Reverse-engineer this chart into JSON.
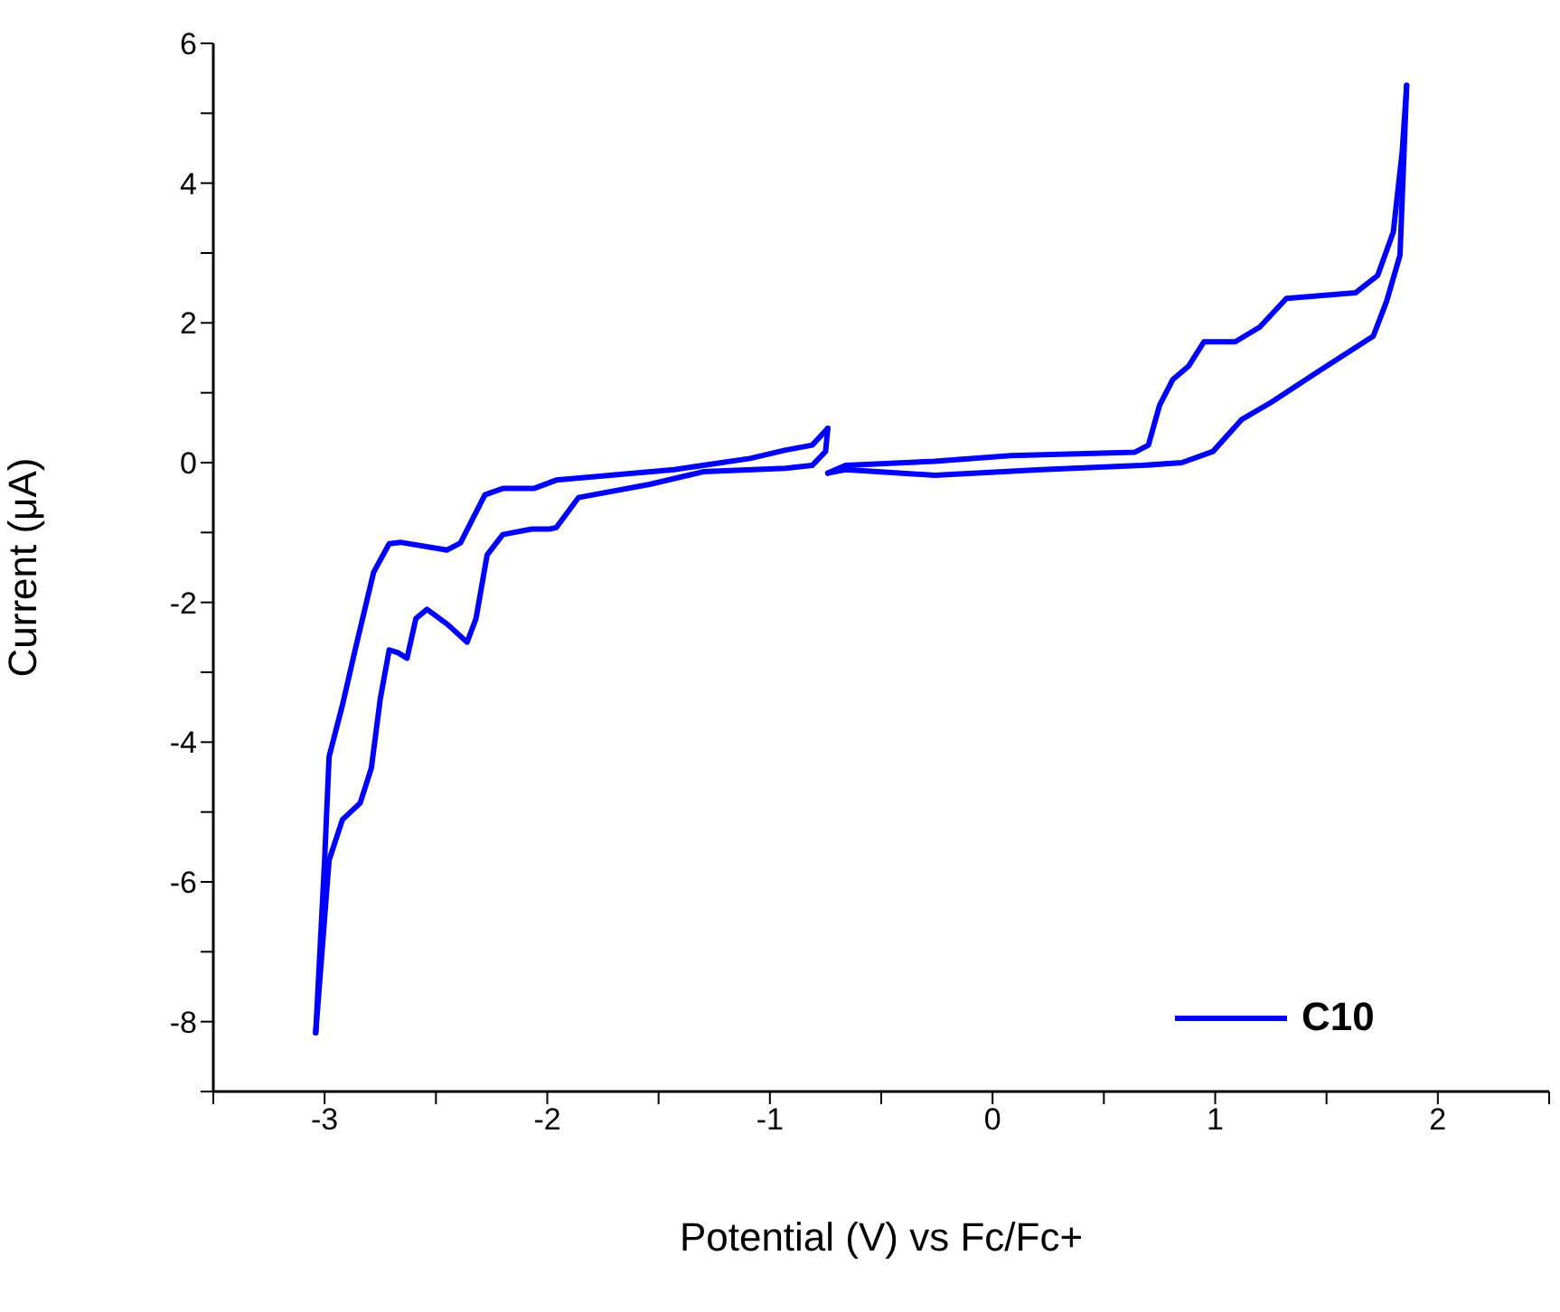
{
  "chart_data": {
    "type": "line",
    "xlabel": "Potential (V) vs Fc/Fc+",
    "ylabel": "Current (μA)",
    "xlim": [
      -3.5,
      2.5
    ],
    "ylim": [
      -9,
      6
    ],
    "xticks": [
      {
        "value": -3.5,
        "label": null
      },
      -3,
      {
        "value": -2.5,
        "label": null
      },
      -2,
      {
        "value": -1.5,
        "label": null
      },
      -1,
      {
        "value": -0.5,
        "label": null
      },
      0,
      {
        "value": 0.5,
        "label": null
      },
      1,
      {
        "value": 1.5,
        "label": null
      },
      2,
      {
        "value": 2.5,
        "label": null
      }
    ],
    "yticks": [
      {
        "value": -9,
        "label": null
      },
      -8,
      {
        "value": -7,
        "label": null
      },
      -6,
      {
        "value": -5,
        "label": null
      },
      -4,
      {
        "value": -3,
        "label": null
      },
      -2,
      {
        "value": -1,
        "label": null
      },
      0,
      {
        "value": 1,
        "label": null
      },
      2,
      {
        "value": 3,
        "label": null
      },
      4,
      {
        "value": 5,
        "label": null
      },
      6
    ],
    "grid": false,
    "legend": "bottom right",
    "marker": "none",
    "line_style": "solid",
    "series": [
      {
        "name": "C10",
        "color": "#0000ff",
        "x": [
          -0.74,
          -0.75,
          -0.81,
          -0.93,
          -1.3,
          -1.54,
          -1.86,
          -1.96,
          -1.99,
          -2.07,
          -2.2,
          -2.27,
          -2.32,
          -2.36,
          -2.45,
          -2.54,
          -2.59,
          -2.63,
          -2.67,
          -2.71,
          -2.75,
          -2.79,
          -2.84,
          -2.92,
          -2.98,
          -3.04
        ],
        "values": [
          0.49,
          0.16,
          -0.04,
          -0.08,
          -0.13,
          -0.31,
          -0.5,
          -0.93,
          -0.95,
          -0.95,
          -1.03,
          -1.32,
          -2.23,
          -2.57,
          -2.31,
          -2.1,
          -2.23,
          -2.8,
          -2.72,
          -2.68,
          -3.38,
          -4.37,
          -4.87,
          -5.11,
          -5.69,
          -8.16
        ]
      },
      {
        "color": "#0000ff",
        "x": [
          -3.04,
          -3.0,
          -2.98,
          -2.92,
          -2.86,
          -2.78,
          -2.71,
          -2.66,
          -2.45,
          -2.39,
          -2.28,
          -2.2,
          -2.06,
          -1.96,
          -1.43,
          -1.09,
          -0.93,
          -0.81,
          -0.74
        ],
        "values": [
          -8.16,
          -5.69,
          -4.21,
          -3.47,
          -2.64,
          -1.57,
          -1.16,
          -1.14,
          -1.25,
          -1.15,
          -0.46,
          -0.37,
          -0.37,
          -0.25,
          -0.1,
          0.06,
          0.18,
          0.25,
          0.49
        ]
      },
      {
        "color": "#0000ff",
        "x": [
          -0.74,
          -0.66,
          -0.26,
          0.08,
          0.64,
          0.7,
          0.75,
          0.81,
          0.88,
          0.95,
          1.09,
          1.2,
          1.32,
          1.63,
          1.73,
          1.8,
          1.84,
          1.86
        ],
        "values": [
          -0.15,
          -0.04,
          0.02,
          0.1,
          0.15,
          0.25,
          0.82,
          1.19,
          1.38,
          1.73,
          1.73,
          1.94,
          2.35,
          2.43,
          2.68,
          3.3,
          4.45,
          5.4
        ]
      },
      {
        "color": "#0000ff",
        "x": [
          1.86,
          1.83,
          1.77,
          1.71,
          1.47,
          1.25,
          1.12,
          0.99,
          0.85,
          0.67,
          0.22,
          -0.26,
          -0.66,
          -0.74
        ],
        "values": [
          5.4,
          2.97,
          2.31,
          1.81,
          1.32,
          0.86,
          0.62,
          0.16,
          0.0,
          -0.04,
          -0.1,
          -0.18,
          -0.1,
          -0.15
        ]
      }
    ]
  }
}
